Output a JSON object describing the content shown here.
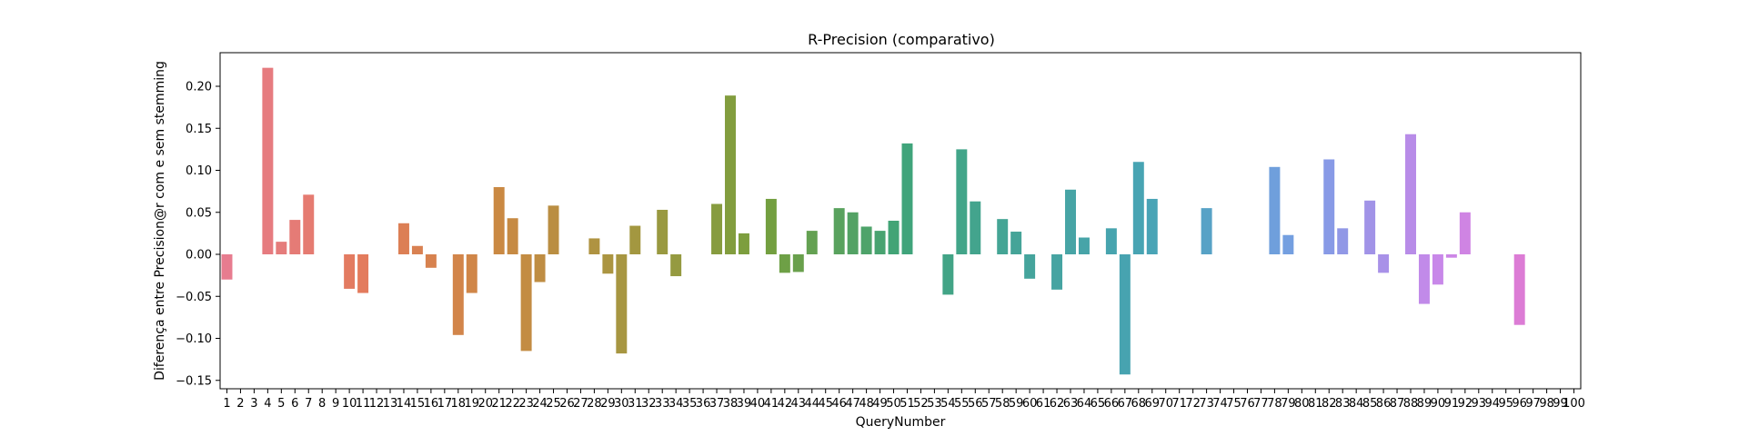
{
  "chart_data": {
    "type": "bar",
    "title": "R-Precision (comparativo)",
    "xlabel": "QueryNumber",
    "ylabel": "Diferença entre Precision@r com e sem stemming",
    "ylim": [
      -0.16,
      0.24
    ],
    "yticks": [
      -0.15,
      -0.1,
      -0.05,
      0.0,
      0.05,
      0.1,
      0.15,
      0.2
    ],
    "ytick_labels": [
      "−0.15",
      "−0.10",
      "−0.05",
      "0.00",
      "0.05",
      "0.10",
      "0.15",
      "0.20"
    ],
    "grid": false,
    "legend": "none",
    "palette": "seaborn husl",
    "categories": [
      "1",
      "2",
      "3",
      "4",
      "5",
      "6",
      "7",
      "8",
      "9",
      "10",
      "11",
      "12",
      "13",
      "14",
      "15",
      "16",
      "17",
      "18",
      "19",
      "20",
      "21",
      "22",
      "23",
      "24",
      "25",
      "26",
      "27",
      "28",
      "29",
      "30",
      "31",
      "32",
      "33",
      "34",
      "35",
      "36",
      "37",
      "38",
      "39",
      "40",
      "41",
      "42",
      "43",
      "44",
      "45",
      "46",
      "47",
      "48",
      "49",
      "50",
      "51",
      "52",
      "53",
      "54",
      "55",
      "56",
      "57",
      "58",
      "59",
      "60",
      "61",
      "62",
      "63",
      "64",
      "65",
      "66",
      "67",
      "68",
      "69",
      "70",
      "71",
      "72",
      "73",
      "74",
      "75",
      "76",
      "77",
      "78",
      "79",
      "80",
      "81",
      "82",
      "83",
      "84",
      "85",
      "86",
      "87",
      "88",
      "89",
      "90",
      "91",
      "92",
      "93",
      "94",
      "95",
      "96",
      "97",
      "98",
      "99",
      "100"
    ],
    "values": [
      -0.03,
      0,
      0,
      0.222,
      0.015,
      0.041,
      0.071,
      0,
      0,
      -0.041,
      -0.046,
      0,
      0,
      0.037,
      0.01,
      -0.016,
      0,
      -0.096,
      -0.046,
      0,
      0.08,
      0.043,
      -0.115,
      -0.033,
      0.058,
      0,
      0,
      0.019,
      -0.023,
      -0.118,
      0.034,
      0,
      0.053,
      -0.026,
      0,
      0,
      0.06,
      0.189,
      0.025,
      0,
      0.066,
      -0.022,
      -0.021,
      0.028,
      0,
      0.055,
      0.05,
      0.033,
      0.028,
      0.04,
      0.132,
      0,
      0,
      -0.048,
      0.125,
      0.063,
      0,
      0.042,
      0.027,
      -0.029,
      0,
      -0.042,
      0.077,
      0.02,
      0,
      0.031,
      -0.143,
      0.11,
      0.066,
      0,
      0,
      0,
      0.055,
      0,
      0,
      0,
      0,
      0.104,
      0.023,
      0,
      0,
      0.113,
      0.031,
      0,
      0.064,
      -0.022,
      0,
      0.143,
      -0.059,
      -0.036,
      -0.004,
      0.05,
      0,
      0,
      0,
      -0.084,
      0,
      0,
      0,
      0
    ]
  }
}
